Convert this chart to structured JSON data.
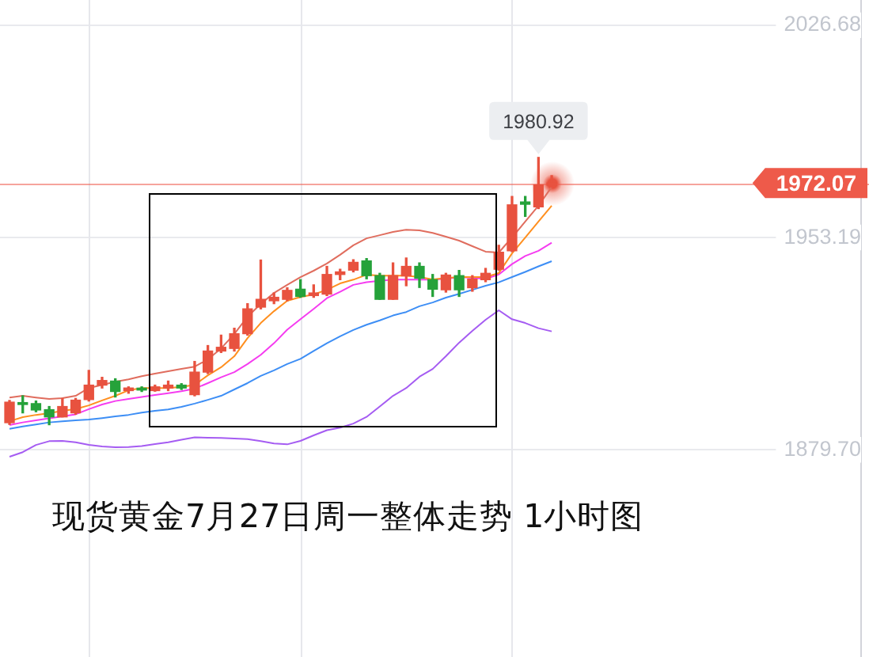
{
  "chart_data": {
    "type": "candlestick",
    "title": "现货黄金7月27日周一整体走势 1小时图",
    "categories": [
      null,
      null,
      null,
      null,
      null,
      null,
      null,
      null,
      null,
      null,
      null,
      null,
      null,
      null,
      null,
      null,
      null,
      null,
      null,
      null,
      null,
      null,
      null,
      null,
      null,
      null,
      null,
      null,
      null,
      null,
      null,
      null,
      null,
      null,
      null,
      null,
      null,
      null,
      null,
      null,
      null,
      null
    ],
    "ohlc": [
      [
        1889.1,
        1896.8,
        1888.5,
        1896.2
      ],
      [
        1895.7,
        1898.4,
        1892.5,
        1895.4
      ],
      [
        1895.7,
        1896.6,
        1892.9,
        1893.5
      ],
      [
        1893.6,
        1894.7,
        1888.4,
        1891.1
      ],
      [
        1891.1,
        1897.5,
        1891.1,
        1894.7
      ],
      [
        1892.5,
        1897.5,
        1892.0,
        1896.9
      ],
      [
        1897.1,
        1907.2,
        1896.6,
        1902.1
      ],
      [
        1902.1,
        1904.8,
        1901.1,
        1903.7
      ],
      [
        1903.5,
        1904.3,
        1898.0,
        1899.9
      ],
      [
        1900.2,
        1901.5,
        1899.3,
        1901.1
      ],
      [
        1900.8,
        1901.5,
        1899.9,
        1900.4
      ],
      [
        1900.2,
        1902.1,
        1900.0,
        1901.5
      ],
      [
        1901.1,
        1903.5,
        1900.2,
        1902.1
      ],
      [
        1902.1,
        1902.6,
        1900.6,
        1901.1
      ],
      [
        1898.8,
        1910.3,
        1898.4,
        1906.6
      ],
      [
        1906.6,
        1915.8,
        1906.1,
        1913.9
      ],
      [
        1913.9,
        1919.4,
        1913.4,
        1915.2
      ],
      [
        1914.8,
        1921.8,
        1913.9,
        1919.9
      ],
      [
        1919.9,
        1930.3,
        1919.4,
        1928.5
      ],
      [
        1929.1,
        1945.4,
        1928.5,
        1931.8
      ],
      [
        1931.3,
        1934.0,
        1930.3,
        1932.5
      ],
      [
        1931.8,
        1935.8,
        1931.3,
        1934.9
      ],
      [
        1935.3,
        1938.6,
        1932.5,
        1932.8
      ],
      [
        1933.1,
        1936.8,
        1932.5,
        1934.0
      ],
      [
        1933.6,
        1943.2,
        1933.1,
        1940.4
      ],
      [
        1940.4,
        1942.2,
        1938.6,
        1941.3
      ],
      [
        1941.9,
        1945.5,
        1941.3,
        1944.6
      ],
      [
        1945.1,
        1945.9,
        1938.9,
        1940.0
      ],
      [
        1940.0,
        1940.8,
        1931.8,
        1931.8
      ],
      [
        1931.8,
        1944.4,
        1931.8,
        1940.0
      ],
      [
        1939.9,
        1946.1,
        1936.5,
        1943.2
      ],
      [
        1943.2,
        1944.4,
        1935.9,
        1939.1
      ],
      [
        1938.6,
        1940.4,
        1932.8,
        1935.3
      ],
      [
        1935.1,
        1940.8,
        1934.3,
        1940.2
      ],
      [
        1940.0,
        1941.8,
        1932.8,
        1935.1
      ],
      [
        1935.8,
        1940.0,
        1934.6,
        1938.8
      ],
      [
        1938.6,
        1942.5,
        1937.9,
        1940.8
      ],
      [
        1942.2,
        1950.5,
        1941.9,
        1948.1
      ],
      [
        1948.6,
        1967.4,
        1948.3,
        1964.5
      ],
      [
        1965.5,
        1967.4,
        1960.5,
        1964.7
      ],
      [
        1963.8,
        1980.92,
        1963.2,
        1971.4
      ],
      [
        1971.3,
        1974.6,
        1970.6,
        1972.07
      ]
    ],
    "colors": [
      "#e8523f",
      "#25a23a",
      "#25a23a",
      "#25a23a",
      "#e8523f",
      "#e8523f",
      "#e8523f",
      "#e8523f",
      "#25a23a",
      "#e8523f",
      "#25a23a",
      "#e8523f",
      "#e8523f",
      "#25a23a",
      "#e8523f",
      "#e8523f",
      "#e8523f",
      "#e8523f",
      "#e8523f",
      "#e8523f",
      "#e8523f",
      "#e8523f",
      "#25a23a",
      "#e8523f",
      "#e8523f",
      "#e8523f",
      "#e8523f",
      "#25a23a",
      "#25a23a",
      "#e8523f",
      "#e8523f",
      "#25a23a",
      "#25a23a",
      "#e8523f",
      "#25a23a",
      "#e8523f",
      "#e8523f",
      "#e8523f",
      "#e8523f",
      "#25a23a",
      "#e8523f",
      "#e8523f"
    ],
    "series": [
      {
        "type": "line",
        "color": "#e06d5e",
        "values": [
          1897.8,
          1898.4,
          1897.8,
          1897.3,
          1897.6,
          1898.4,
          1901.1,
          1902.2,
          1903.3,
          1904.1,
          1905.2,
          1906.1,
          1906.9,
          1907.7,
          1908.5,
          1911.0,
          1914.8,
          1919.8,
          1925.8,
          1930.2,
          1934.0,
          1936.8,
          1939.5,
          1941.7,
          1944.2,
          1947.2,
          1950.5,
          1952.9,
          1954.0,
          1955.1,
          1955.9,
          1955.7,
          1954.8,
          1953.5,
          1952.1,
          1950.2,
          1948.3,
          1948.0,
          1953.2,
          1958.7,
          1964.2,
          1970.7
        ]
      },
      {
        "type": "line",
        "color": "#ff8f1f",
        "values": [
          1889.6,
          1891.0,
          1891.8,
          1892.4,
          1893.2,
          1893.8,
          1895.1,
          1896.8,
          1898.4,
          1900.3,
          1901.1,
          1901.1,
          1901.1,
          1901.5,
          1902.2,
          1905.5,
          1908.3,
          1912.1,
          1918.4,
          1923.6,
          1927.7,
          1931.3,
          1932.6,
          1933.5,
          1935.1,
          1937.3,
          1938.6,
          1940.3,
          1940.0,
          1940.0,
          1940.0,
          1939.5,
          1938.7,
          1939.2,
          1939.5,
          1939.5,
          1939.5,
          1940.9,
          1947.7,
          1953.2,
          1958.7,
          1964.2
        ]
      },
      {
        "type": "line",
        "color": "#f53cf0",
        "values": [
          1888.3,
          1889.2,
          1889.9,
          1890.6,
          1891.3,
          1892.0,
          1893.8,
          1895.4,
          1896.6,
          1897.3,
          1898.0,
          1898.7,
          1899.3,
          1900.0,
          1900.9,
          1902.8,
          1904.8,
          1906.6,
          1909.4,
          1912.6,
          1916.6,
          1921.3,
          1924.9,
          1928.5,
          1932.2,
          1934.4,
          1936.8,
          1937.7,
          1938.2,
          1938.6,
          1938.6,
          1938.6,
          1938.6,
          1938.9,
          1939.5,
          1939.2,
          1938.9,
          1940.4,
          1944.0,
          1946.8,
          1948.6,
          1951.4
        ]
      },
      {
        "type": "line",
        "color": "#3d8ef5",
        "values": [
          1887.0,
          1887.8,
          1888.5,
          1889.2,
          1889.6,
          1889.9,
          1890.2,
          1890.7,
          1891.3,
          1891.8,
          1892.6,
          1893.2,
          1893.7,
          1894.6,
          1895.7,
          1897.0,
          1898.4,
          1900.6,
          1902.8,
          1905.3,
          1907.2,
          1909.4,
          1911.2,
          1913.9,
          1916.6,
          1919.0,
          1921.2,
          1923.0,
          1924.5,
          1926.2,
          1927.4,
          1929.4,
          1930.7,
          1932.4,
          1933.7,
          1935.1,
          1936.5,
          1937.7,
          1939.5,
          1941.3,
          1943.2,
          1945.0
        ]
      },
      {
        "type": "line",
        "color": "#a55cf2",
        "values": [
          1877.3,
          1878.9,
          1881.4,
          1882.7,
          1882.8,
          1882.3,
          1881.4,
          1880.9,
          1880.6,
          1880.7,
          1881.0,
          1881.7,
          1882.3,
          1883.2,
          1884.0,
          1883.9,
          1883.8,
          1883.6,
          1883.4,
          1882.7,
          1881.9,
          1881.6,
          1882.8,
          1884.7,
          1886.5,
          1887.4,
          1888.8,
          1891.1,
          1894.7,
          1898.4,
          1901.1,
          1905.0,
          1907.7,
          1912.1,
          1916.8,
          1920.9,
          1924.7,
          1928.0,
          1924.9,
          1923.6,
          1921.8,
          1920.7
        ]
      }
    ],
    "ylim": [
      1808.0,
      2035.4
    ],
    "yticks": [
      2026.68,
      1953.19,
      {
        "value": 1879.7,
        "label": "1879.70"
      }
    ],
    "grid": true,
    "ref_lines": [
      {
        "axis": "y",
        "value": 1972.07,
        "label": "1972.07",
        "color": "#ee5a4a"
      }
    ],
    "annotations": [
      {
        "text": "1980.92",
        "y": 1980.92
      }
    ]
  }
}
